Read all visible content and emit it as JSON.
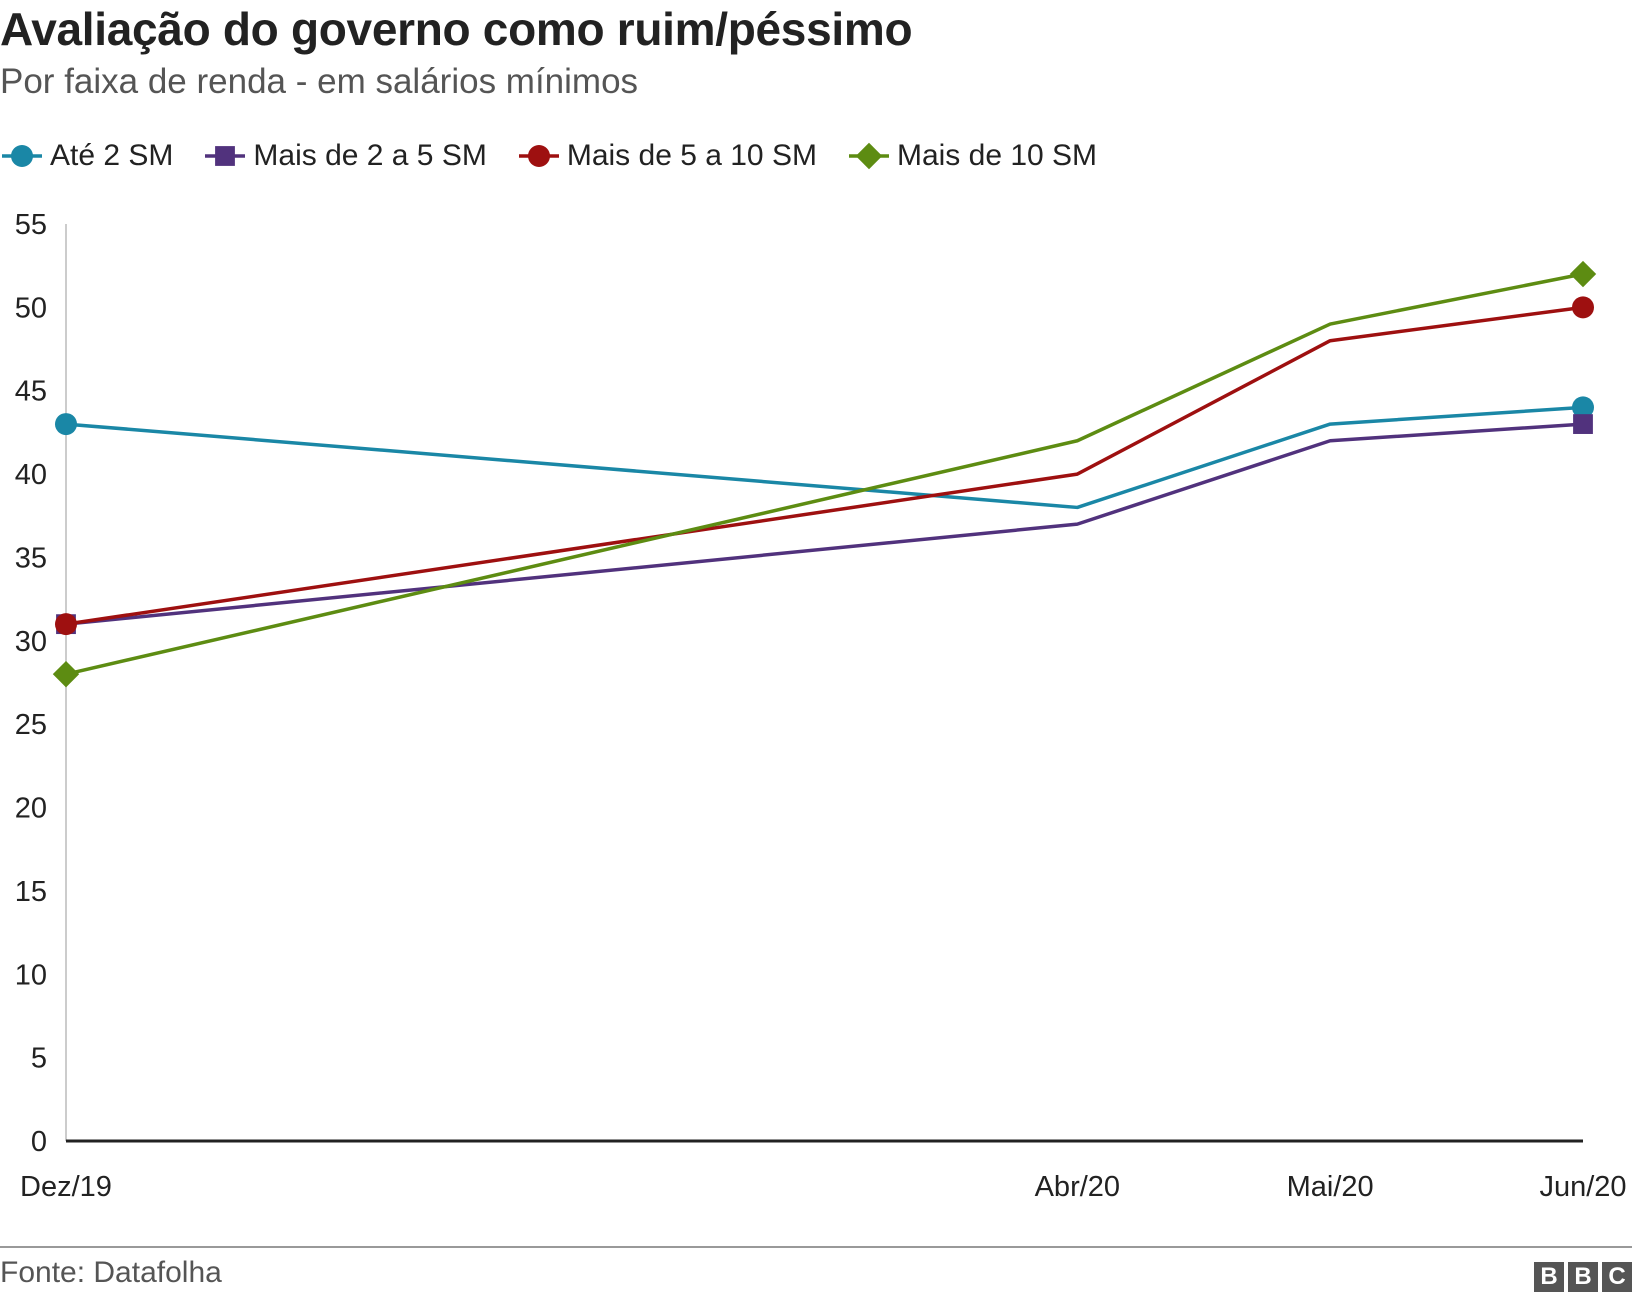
{
  "title": "Avaliação do governo como ruim/péssimo",
  "subtitle": "Por faixa de renda - em salários mínimos",
  "source": "Fonte: Datafolha",
  "logo_letters": [
    "B",
    "B",
    "C"
  ],
  "chart_data": {
    "type": "line",
    "title": "Avaliação do governo como ruim/péssimo",
    "subtitle": "Por faixa de renda - em salários mínimos",
    "categories": [
      "Dez/19",
      "Abr/20",
      "Mai/20",
      "Jun/20"
    ],
    "x_positions": [
      0,
      4,
      5,
      6
    ],
    "ylim": [
      0,
      55
    ],
    "yticks": [
      0,
      5,
      10,
      15,
      20,
      25,
      30,
      35,
      40,
      45,
      50,
      55
    ],
    "grid": false,
    "legend_position": "top-left",
    "series": [
      {
        "name": "Até 2 SM",
        "color": "#1a87a6",
        "marker": "circle",
        "values": [
          43,
          38,
          43,
          44
        ],
        "markers_at": [
          0,
          3
        ]
      },
      {
        "name": "Mais de 2 a 5 SM",
        "color": "#51327d",
        "marker": "square",
        "values": [
          31,
          37,
          42,
          43
        ],
        "markers_at": [
          0,
          3
        ]
      },
      {
        "name": "Mais de 5 a 10 SM",
        "color": "#9e1010",
        "marker": "circle",
        "values": [
          31,
          40,
          48,
          50
        ],
        "markers_at": [
          0,
          3
        ]
      },
      {
        "name": "Mais de 10 SM",
        "color": "#5d8c12",
        "marker": "diamond",
        "values": [
          28,
          42,
          49,
          52
        ],
        "markers_at": [
          0,
          3
        ]
      }
    ]
  }
}
